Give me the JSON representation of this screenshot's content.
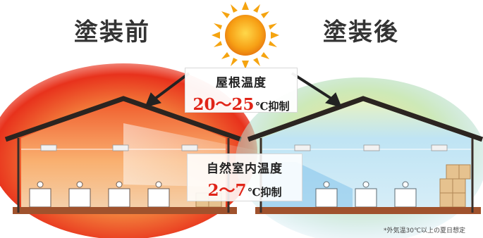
{
  "titles": {
    "before": "塗装前",
    "after": "塗装後"
  },
  "roof_temperature": {
    "label": "屋根温度",
    "value": "20～25",
    "unit": "℃抑制"
  },
  "room_temperature": {
    "label": "自然室内温度",
    "value": "2～7",
    "unit": "℃抑制"
  },
  "footnote": "*外気温30℃以上の夏日想定",
  "colors": {
    "heat_red": "#e8321c",
    "heat_orange": "#f7a24a",
    "cool_blue": "#7cc0ea",
    "cool_yellow": "#f9e58a",
    "sun": "#f5a410",
    "accent_text": "#e02418"
  }
}
